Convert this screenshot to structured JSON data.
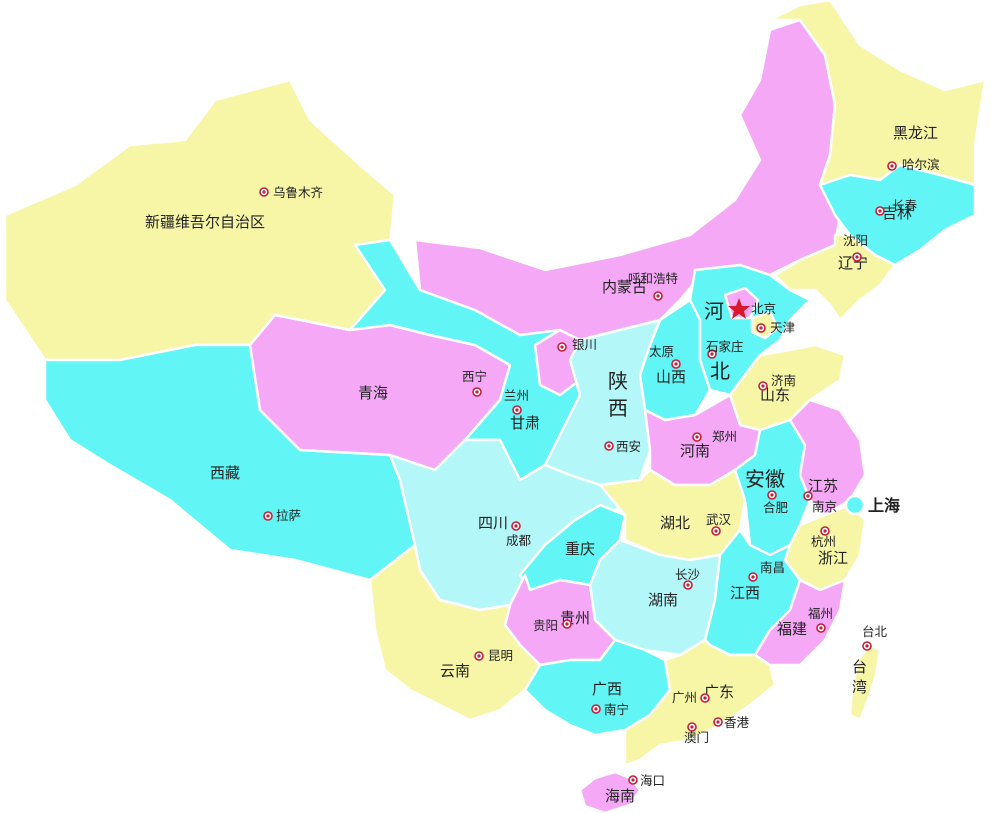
{
  "colors": {
    "yellow": "#f7f5a6",
    "pink": "#f4a8f6",
    "cyan": "#62f5f6",
    "lightcyan": "#b4f7f8",
    "capital": "#d8192b",
    "city": "#c0203a"
  },
  "provinces": {
    "xinjiang": "新疆维吾尔自治区",
    "xizang": "西藏",
    "qinghai": "青海",
    "gansu": "甘肃",
    "neimenggu": "内蒙古",
    "heilongjiang": "黑龙江",
    "jilin": "吉林",
    "liaoning": "辽宁",
    "hebei_1": "河",
    "hebei_2": "北",
    "shanxi": "山西",
    "shaanxi_1": "陕",
    "shaanxi_2": "西",
    "shandong": "山东",
    "henan": "河南",
    "sichuan": "四川",
    "chongqing": "重庆",
    "hubei": "湖北",
    "anhui": "安徽",
    "jiangsu": "江苏",
    "shanghai": "上海",
    "zhejiang": "浙江",
    "hunan": "湖南",
    "jiangxi": "江西",
    "fujian": "福建",
    "guizhou": "贵州",
    "yunnan": "云南",
    "guangxi": "广西",
    "guangdong": "广东",
    "hainan": "海南",
    "taiwan_1": "台",
    "taiwan_2": "湾"
  },
  "cities": {
    "urumqi": "乌鲁木齐",
    "lhasa": "拉萨",
    "xining": "西宁",
    "lanzhou": "兰州",
    "yinchuan": "银川",
    "huhehaote": "呼和浩特",
    "harbin": "哈尔滨",
    "changchun": "长春",
    "shenyang": "沈阳",
    "beijing": "北京",
    "tianjin": "天津",
    "taiyuan": "太原",
    "shijiazhuang": "石家庄",
    "jinan": "济南",
    "zhengzhou": "郑州",
    "xian": "西安",
    "chengdu": "成都",
    "wuhan": "武汉",
    "hefei": "合肥",
    "nanjing": "南京",
    "hangzhou": "杭州",
    "changsha": "长沙",
    "nanchang": "南昌",
    "fuzhou": "福州",
    "guiyang": "贵阳",
    "kunming": "昆明",
    "nanning": "南宁",
    "guangzhou": "广州",
    "xianggang": "香港",
    "aomen": "澳门",
    "haikou": "海口",
    "taibei": "台北"
  }
}
